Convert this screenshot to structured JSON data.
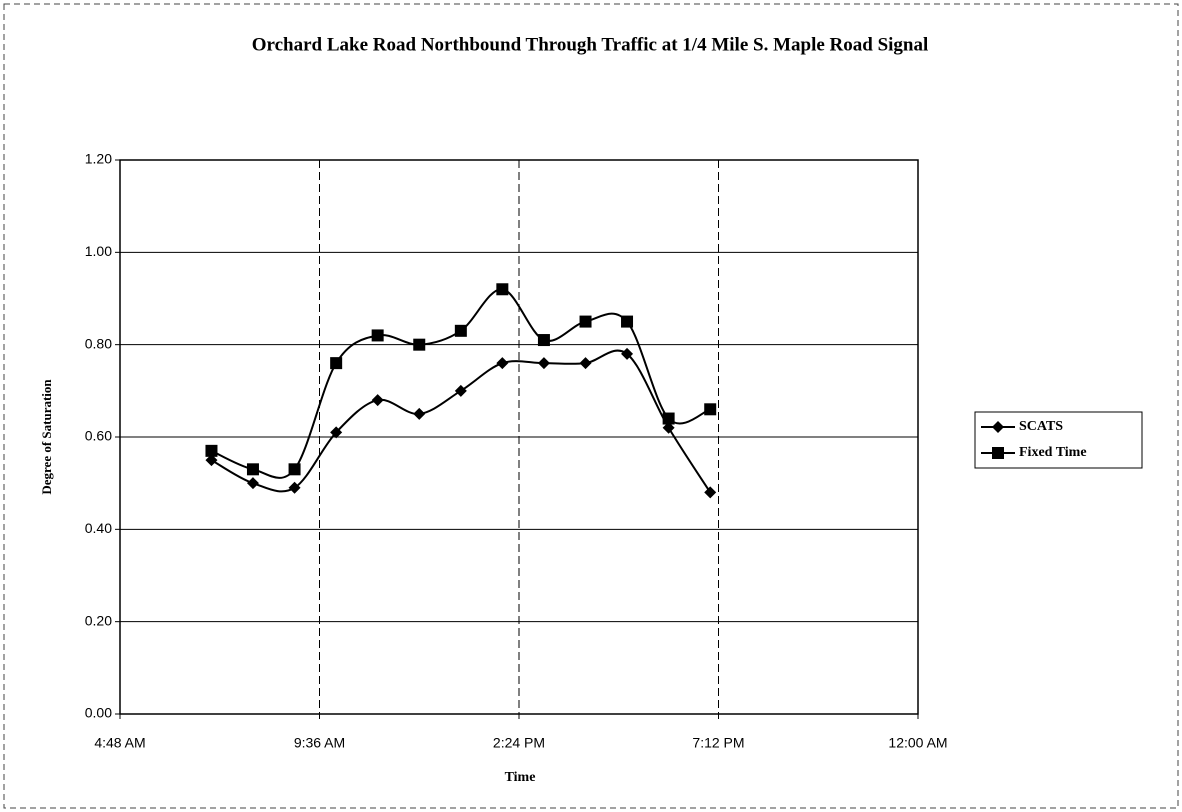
{
  "chart_data": {
    "type": "line",
    "title": "Orchard Lake Road  Northbound Through Traffic at 1/4 Mile S. Maple Road Signal",
    "x_label": "Time",
    "y_label": "Degree of Saturation",
    "x": [
      0.2917,
      0.3333,
      0.375,
      0.4167,
      0.4583,
      0.5,
      0.5417,
      0.5833,
      0.625,
      0.6667,
      0.7083,
      0.75,
      0.7917
    ],
    "series": [
      {
        "name": "SCATS",
        "color": "#000000",
        "marker": "diamond",
        "values": [
          0.55,
          0.5,
          0.49,
          0.61,
          0.68,
          0.65,
          0.7,
          0.76,
          0.76,
          0.76,
          0.78,
          0.62,
          0.48
        ]
      },
      {
        "name": "Fixed Time",
        "color": "#000000",
        "marker": "square",
        "values": [
          0.57,
          0.53,
          0.53,
          0.76,
          0.82,
          0.8,
          0.83,
          0.92,
          0.81,
          0.85,
          0.85,
          0.64,
          0.66
        ]
      }
    ],
    "xlim": [
      0.2,
      1.0
    ],
    "xticks": [
      {
        "value": 0.2,
        "label": "4:48 AM"
      },
      {
        "value": 0.4,
        "label": "9:36 AM"
      },
      {
        "value": 0.6,
        "label": "2:24 PM"
      },
      {
        "value": 0.8,
        "label": "7:12 PM"
      },
      {
        "value": 1.0,
        "label": "12:00 AM"
      }
    ],
    "ylim": [
      0,
      1.2
    ],
    "yticks": [
      {
        "value": 0,
        "label": "0.00"
      },
      {
        "value": 0.2,
        "label": "0.20"
      },
      {
        "value": 0.4,
        "label": "0.40"
      },
      {
        "value": 0.6,
        "label": "0.60"
      },
      {
        "value": 0.8,
        "label": "0.80"
      },
      {
        "value": 1.0,
        "label": "1.00"
      },
      {
        "value": 1.2,
        "label": "1.20"
      }
    ],
    "grid": true,
    "legend": "right"
  }
}
